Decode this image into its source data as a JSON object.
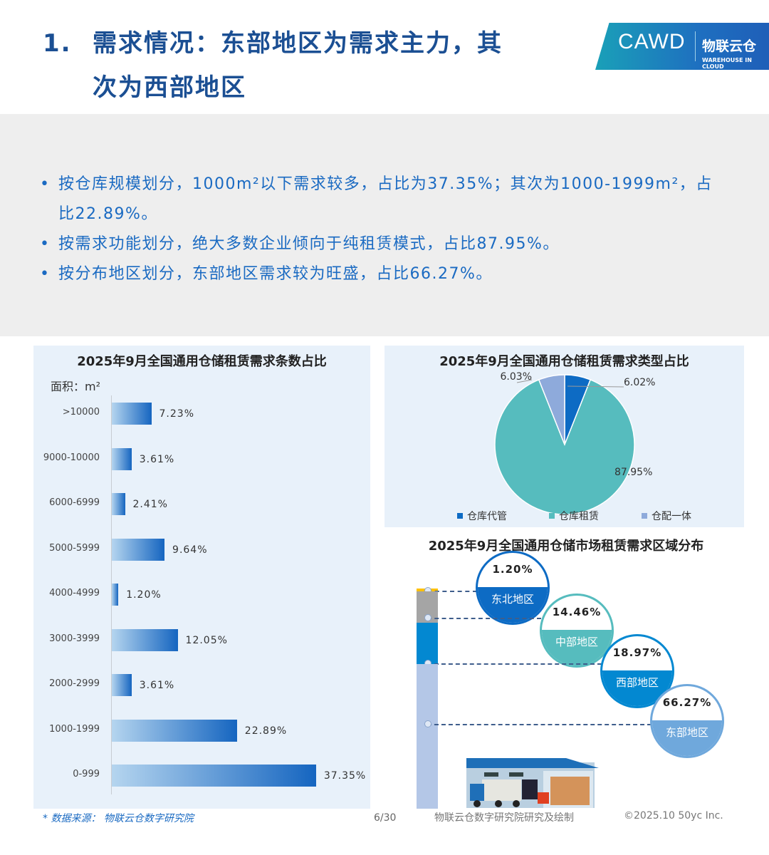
{
  "header": {
    "number": "1.",
    "title_line1": "需求情况：东部地区为需求主力，其",
    "title_line2": "次为西部地区"
  },
  "logo": {
    "cawd": "CAWD",
    "brand": "物联云仓",
    "brand_en": "WAREHOUSE IN CLOUD"
  },
  "summary": [
    "按仓库规模划分，1000m²以下需求较多，占比为37.35%；其次为1000-1999m²，占比22.89%。",
    "按需求功能划分，绝大多数企业倾向于纯租赁模式，占比87.95%。",
    "按分布地区划分，东部地区需求较为旺盛，占比66.27%。"
  ],
  "chart_data": [
    {
      "type": "bar",
      "orientation": "horizontal",
      "title": "2025年9月全国通用仓储租赁需求条数占比",
      "ylabel": "面积：m²",
      "categories": [
        ">10000",
        "9000-10000",
        "6000-6999",
        "5000-5999",
        "4000-4999",
        "3000-3999",
        "2000-2999",
        "1000-1999",
        "0-999"
      ],
      "values": [
        7.23,
        3.61,
        2.41,
        9.64,
        1.2,
        12.05,
        3.61,
        22.89,
        37.35
      ],
      "labels": [
        "7.23%",
        "3.61%",
        "2.41%",
        "9.64%",
        "1.20%",
        "12.05%",
        "3.61%",
        "22.89%",
        "37.35%"
      ],
      "color": "#1565c0"
    },
    {
      "type": "pie",
      "title": "2025年9月全国通用仓储租赁需求类型占比",
      "legend": "bottom",
      "slices": [
        {
          "name": "仓库代管",
          "value": 6.02,
          "label": "6.02%",
          "color": "#0d6bc4"
        },
        {
          "name": "仓库租赁",
          "value": 87.95,
          "label": "87.95%",
          "color": "#56bcbe"
        },
        {
          "name": "仓配一体",
          "value": 6.03,
          "label": "6.03%",
          "color": "#8eaadb"
        }
      ]
    },
    {
      "type": "bar",
      "orientation": "stacked",
      "title": "2025年9月全国通用仓储市场租赁需求区域分布",
      "series": [
        {
          "name": "东北地区",
          "value": 1.2,
          "label": "1.20%",
          "color": "#ffc000",
          "bubble": "#0d6bc4"
        },
        {
          "name": "中部地区",
          "value": 14.46,
          "label": "14.46%",
          "color": "#a5a5a5",
          "bubble": "#56bcbe"
        },
        {
          "name": "西部地区",
          "value": 18.97,
          "label": "18.97%",
          "color": "#0388d1",
          "bubble": "#0388d1"
        },
        {
          "name": "东部地区",
          "value": 66.27,
          "label": "66.27%",
          "color": "#b4c7e7",
          "bubble": "#6fa8dc"
        }
      ]
    }
  ],
  "footer": {
    "source": "* 数据来源：  物联云仓数字研究院",
    "page": "6/30",
    "credit": "物联云仓数字研究院研究及绘制",
    "copyright": "©2025.10 50yc Inc."
  }
}
